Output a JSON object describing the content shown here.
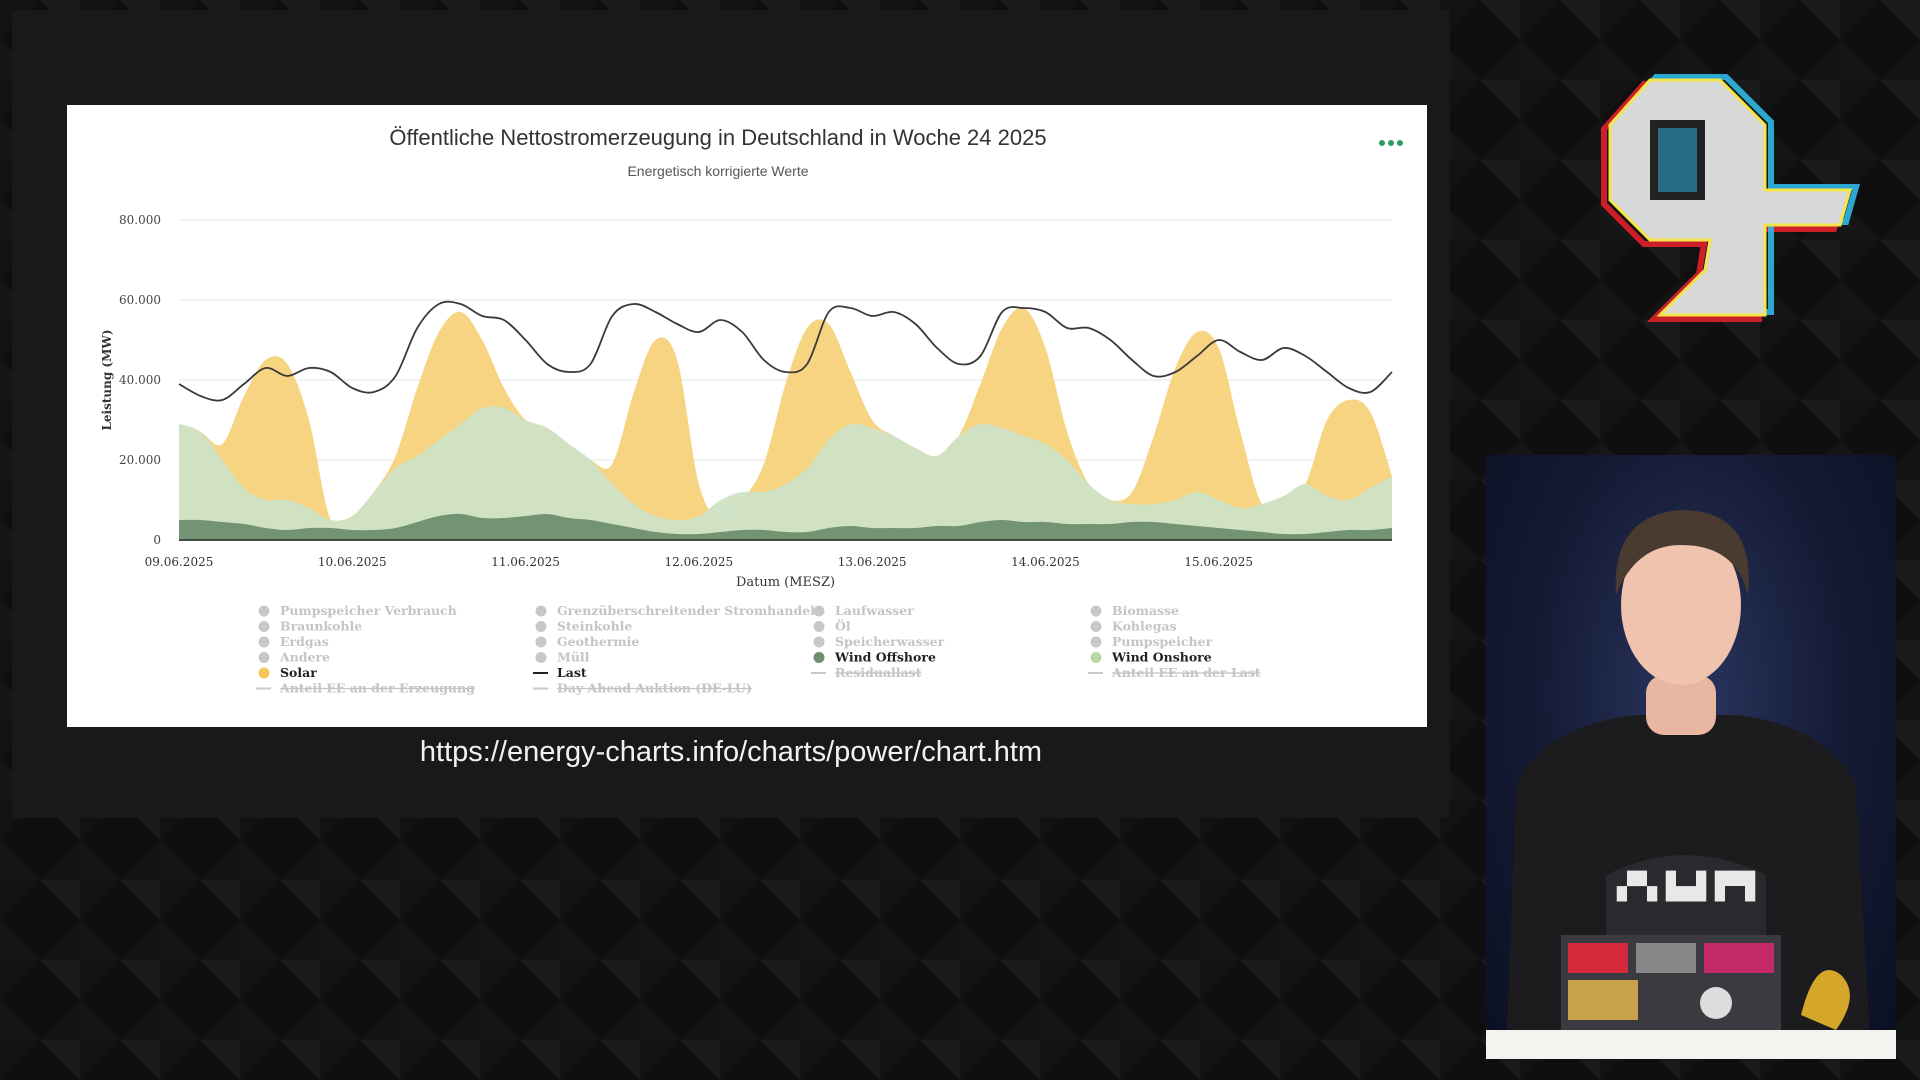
{
  "chart_data": {
    "type": "area",
    "title": "Öffentliche Nettostromerzeugung in Deutschland in Woche 24 2025",
    "subtitle": "Energetisch korrigierte Werte",
    "xlabel": "Datum (MESZ)",
    "ylabel": "Leistung (MW)",
    "ylim": [
      0,
      80000
    ],
    "y_ticks": [
      "0",
      "20.000",
      "40.000",
      "60.000",
      "80.000"
    ],
    "x_ticks": [
      "09.06.2025",
      "10.06.2025",
      "11.06.2025",
      "12.06.2025",
      "13.06.2025",
      "14.06.2025",
      "15.06.2025"
    ],
    "x_hours": [
      0,
      3,
      6,
      9,
      12,
      15,
      18,
      21,
      24,
      27,
      30,
      33,
      36,
      39,
      42,
      45,
      48,
      51,
      54,
      57,
      60,
      63,
      66,
      69,
      72,
      75,
      78,
      81,
      84,
      87,
      90,
      93,
      96,
      99,
      102,
      105,
      108,
      111,
      114,
      117,
      120,
      123,
      126,
      129,
      132,
      135,
      138,
      141,
      144,
      147,
      150,
      153,
      156,
      159,
      162,
      165,
      168
    ],
    "grid": true,
    "legend_position": "bottom",
    "colors": {
      "solar": "#f6d27a",
      "wind_onshore": "#cfe3c5",
      "wind_offshore": "#6e8f6f",
      "last": "#3a3a3a",
      "inactive": "#c8c8c8"
    },
    "series": [
      {
        "name": "Wind Offshore",
        "kind": "area",
        "values": [
          5000,
          5000,
          4500,
          4000,
          3000,
          2500,
          3000,
          3000,
          2500,
          2500,
          3000,
          4500,
          6000,
          6500,
          5500,
          5500,
          6000,
          6500,
          5500,
          5000,
          4000,
          3000,
          2000,
          1500,
          1500,
          2000,
          2500,
          2500,
          2000,
          2000,
          3000,
          3500,
          3000,
          3000,
          3000,
          3500,
          3500,
          4500,
          5000,
          4500,
          4500,
          4000,
          4000,
          4000,
          4500,
          4500,
          4000,
          3500,
          3000,
          2500,
          2000,
          1500,
          1500,
          2000,
          2500,
          2500,
          3000
        ]
      },
      {
        "name": "Wind Onshore",
        "kind": "area",
        "values": [
          29000,
          27000,
          20000,
          13000,
          10000,
          10000,
          8000,
          5000,
          6000,
          12000,
          18000,
          21000,
          25000,
          29000,
          33000,
          33000,
          30000,
          28000,
          24000,
          20000,
          14000,
          9000,
          6000,
          5000,
          6000,
          10000,
          12000,
          12000,
          14000,
          18000,
          25000,
          29000,
          28000,
          26000,
          23000,
          21000,
          26000,
          29000,
          28000,
          26000,
          24000,
          20000,
          14000,
          10000,
          9000,
          9000,
          10000,
          12000,
          10000,
          8000,
          9000,
          11000,
          14000,
          11000,
          10000,
          13000,
          16000
        ]
      },
      {
        "name": "Solar",
        "kind": "area",
        "values": [
          29000,
          27000,
          24000,
          36000,
          45000,
          44000,
          30000,
          5000,
          6000,
          12000,
          21000,
          38000,
          52000,
          57000,
          50000,
          38000,
          30000,
          28000,
          24000,
          20000,
          19000,
          37000,
          50000,
          45000,
          14000,
          5000,
          10000,
          19000,
          39000,
          53000,
          54000,
          42000,
          30000,
          26000,
          23000,
          21000,
          26000,
          39000,
          53000,
          58000,
          48000,
          27000,
          14000,
          10000,
          12000,
          26000,
          43000,
          52000,
          48000,
          27000,
          9000,
          11000,
          14000,
          30000,
          35000,
          32000,
          16000
        ]
      },
      {
        "name": "Last",
        "kind": "line",
        "values": [
          39000,
          36000,
          35000,
          39000,
          43000,
          41000,
          43000,
          42000,
          38000,
          37000,
          41000,
          53000,
          59000,
          59000,
          56000,
          55000,
          50000,
          44000,
          42000,
          44000,
          56000,
          59000,
          57000,
          54000,
          52000,
          55000,
          52000,
          45000,
          42000,
          44000,
          57000,
          58000,
          56000,
          57000,
          54000,
          48000,
          44000,
          46000,
          57000,
          58000,
          57000,
          53000,
          53000,
          50000,
          45000,
          41000,
          42000,
          46000,
          50000,
          47000,
          45000,
          48000,
          46000,
          42000,
          38000,
          37000,
          42000
        ]
      }
    ],
    "legend": [
      {
        "label": "Pumpspeicher Verbrauch",
        "marker": "dot",
        "active": false
      },
      {
        "label": "Grenzüberschreitender Stromhandel",
        "marker": "dot",
        "active": false
      },
      {
        "label": "Laufwasser",
        "marker": "dot",
        "active": false
      },
      {
        "label": "Biomasse",
        "marker": "dot",
        "active": false
      },
      {
        "label": "Braunkohle",
        "marker": "dot",
        "active": false
      },
      {
        "label": "Steinkohle",
        "marker": "dot",
        "active": false
      },
      {
        "label": "Öl",
        "marker": "dot",
        "active": false
      },
      {
        "label": "Kohlegas",
        "marker": "dot",
        "active": false
      },
      {
        "label": "Erdgas",
        "marker": "dot",
        "active": false
      },
      {
        "label": "Geothermie",
        "marker": "dot",
        "active": false
      },
      {
        "label": "Speicherwasser",
        "marker": "dot",
        "active": false
      },
      {
        "label": "Pumpspeicher",
        "marker": "dot",
        "active": false
      },
      {
        "label": "Andere",
        "marker": "dot",
        "active": false
      },
      {
        "label": "Müll",
        "marker": "dot",
        "active": false
      },
      {
        "label": "Wind Offshore",
        "marker": "dot",
        "active": true,
        "color": "#6e8f6f"
      },
      {
        "label": "Wind Onshore",
        "marker": "dot",
        "active": true,
        "color": "#b8d8a8"
      },
      {
        "label": "Solar",
        "marker": "dot",
        "active": true,
        "color": "#f6c75a"
      },
      {
        "label": "Last",
        "marker": "line",
        "active": true,
        "color": "#222222"
      },
      {
        "label": "Residuallast",
        "marker": "line",
        "active": false
      },
      {
        "label": "Anteil EE an der Last",
        "marker": "line",
        "active": false
      },
      {
        "label": "Anteil EE an der Erzeugung",
        "marker": "line",
        "active": false
      },
      {
        "label": "Day Ahead Auktion (DE-LU)",
        "marker": "line",
        "active": false
      }
    ]
  },
  "url_caption": "https://energy-charts.info/charts/power/chart.htm",
  "menu": {
    "icon": "more-dots-icon"
  },
  "logo": {
    "icon": "event-logo-icon"
  },
  "speaker": {
    "icon": "speaker-camera-feed"
  }
}
